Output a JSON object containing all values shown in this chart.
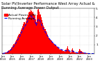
{
  "title_line1": "Solar PV/Inverter Performance West Array Actual & Running Average Power Output",
  "title_line2": "Actual Power (kW)  ——  Running Average",
  "title_fontsize": 3.8,
  "legend_fontsize": 3.2,
  "bg_color": "#ffffff",
  "plot_bg_color": "#ffffff",
  "grid_color": "#bbbbbb",
  "bar_color": "#ff0000",
  "avg_color": "#0000ff",
  "avg_linewidth": 0.8,
  "avg_linestyle": "--",
  "ylim": [
    0,
    5
  ],
  "yticks": [
    1,
    2,
    3,
    4,
    5
  ],
  "ytick_labels": [
    "1",
    "2",
    "3",
    "4",
    "5"
  ],
  "ytick_fontsize": 3.2,
  "xtick_fontsize": 2.8,
  "n_bars": 115,
  "bar_heights": [
    0.04,
    0.06,
    0.09,
    0.12,
    0.15,
    0.18,
    0.22,
    0.28,
    0.36,
    0.45,
    0.55,
    0.65,
    0.75,
    0.88,
    1.05,
    1.2,
    1.38,
    1.55,
    1.7,
    1.88,
    2.05,
    2.22,
    2.42,
    2.62,
    2.82,
    3.05,
    3.25,
    3.45,
    3.3,
    3.55,
    3.85,
    4.05,
    4.22,
    4.52,
    4.62,
    4.82,
    4.72,
    4.52,
    4.62,
    4.42,
    4.22,
    3.82,
    3.52,
    4.22,
    4.82,
    4.92,
    4.62,
    4.32,
    4.02,
    3.72,
    3.42,
    3.12,
    2.92,
    2.72,
    2.52,
    2.32,
    2.12,
    1.92,
    1.77,
    1.62,
    1.52,
    1.42,
    1.32,
    1.22,
    1.12,
    1.02,
    0.97,
    0.87,
    0.77,
    0.67,
    0.6,
    0.54,
    0.47,
    0.42,
    0.37,
    0.34,
    0.3,
    0.27,
    0.22,
    0.42,
    0.62,
    0.82,
    0.52,
    0.32,
    0.22,
    0.17,
    0.47,
    0.57,
    0.37,
    0.27,
    0.17,
    0.12,
    0.09,
    0.07,
    0.05,
    0.32,
    0.52,
    0.42,
    0.32,
    0.22,
    0.17,
    0.12,
    0.09,
    0.07,
    0.05,
    0.04,
    0.03,
    0.02,
    0.01,
    0.01,
    0.01,
    0.01,
    0.01,
    0.01,
    0.01
  ],
  "avg_values": [
    0.04,
    0.05,
    0.07,
    0.09,
    0.11,
    0.14,
    0.17,
    0.22,
    0.28,
    0.34,
    0.41,
    0.5,
    0.6,
    0.72,
    0.85,
    0.98,
    1.1,
    1.25,
    1.4,
    1.56,
    1.71,
    1.86,
    2.03,
    2.22,
    2.42,
    2.62,
    2.82,
    3.02,
    3.05,
    3.2,
    3.38,
    3.55,
    3.72,
    3.92,
    4.02,
    4.18,
    4.12,
    3.98,
    4.02,
    3.88,
    3.68,
    3.38,
    3.12,
    3.38,
    3.68,
    3.82,
    3.72,
    3.52,
    3.32,
    3.12,
    2.92,
    2.72,
    2.57,
    2.42,
    2.27,
    2.12,
    1.98,
    1.85,
    1.7,
    1.58,
    1.48,
    1.38,
    1.28,
    1.19,
    1.1,
    1.02,
    0.96,
    0.88,
    0.8,
    0.73,
    0.66,
    0.6,
    0.53,
    0.48,
    0.44,
    0.41,
    0.38,
    0.35,
    0.32,
    0.33,
    0.36,
    0.41,
    0.39,
    0.34,
    0.29,
    0.25,
    0.27,
    0.31,
    0.28,
    0.23,
    0.19,
    0.16,
    0.13,
    0.11,
    0.1,
    0.14,
    0.18,
    0.17,
    0.15,
    0.13,
    0.11,
    0.1,
    0.09,
    0.08,
    0.07,
    0.06,
    0.05,
    0.04,
    0.03,
    0.03,
    0.03,
    0.03,
    0.03,
    0.03,
    0.03
  ],
  "xtick_positions": [
    0,
    12,
    24,
    36,
    48,
    60,
    72,
    84,
    96,
    108
  ],
  "xtick_labels": [
    "Jan\n2014",
    "Jan\n2015",
    "Jan\n2016",
    "Jan\n2017",
    "Jan\n2018",
    "Jan\n2019",
    "Jan\n2020",
    "Jan\n2021",
    "Jan\n2022",
    "Jan\n2023"
  ]
}
